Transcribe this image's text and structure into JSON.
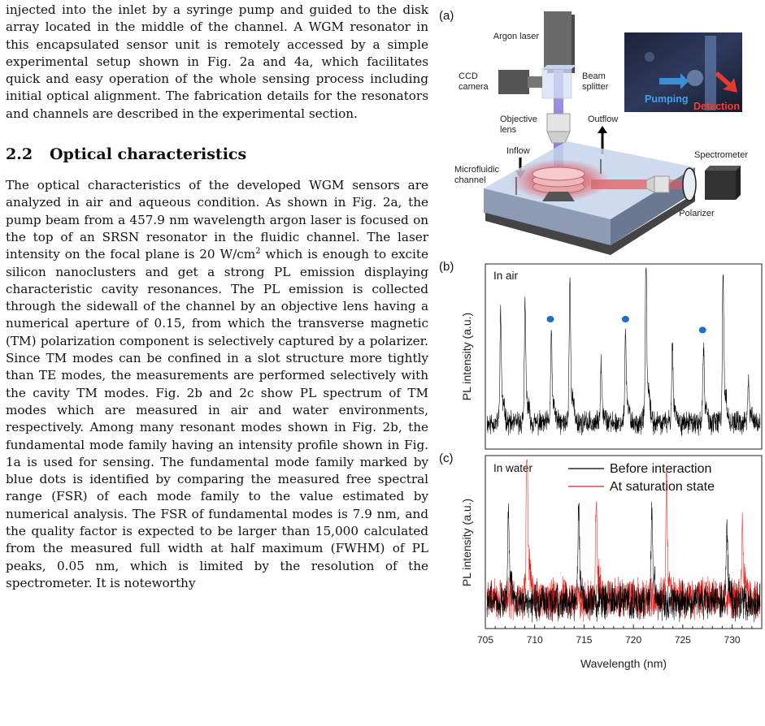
{
  "intro_text": "injected into the inlet by a syringe pump and guided to the disk array located in the middle of the channel. A WGM resonator in this encapsulated sensor unit is remotely accessed by a simple experimental setup shown in Fig. 2a and 4a, which facilitates quick and easy operation of the whole sensing process including initial optical alignment. The fabrication details for the resonators and channels are described in the experimental section.",
  "section": {
    "number": "2.2",
    "title": "Optical characteristics"
  },
  "body": {
    "part1": "The optical characteristics of the developed WGM sensors are analyzed in air and aqueous condition. As shown in Fig. 2a, the pump beam from a 457.9 nm wavelength argon laser is focused on the top of an SRSN resonator in the fluidic channel. The laser intensity on the focal plane is 20 W/cm",
    "sup": "2",
    "part2": " which is enough to excite silicon nanoclusters and get a strong PL emission displaying characteristic cavity resonances. The PL emission is collected through the sidewall of the channel by an objective lens having a numerical aperture of 0.15, from which the transverse magnetic (TM) polarization component is selectively captured by a polarizer. Since TM modes can be confined in a slot structure more tightly than TE modes, the measurements are performed selectively with the cavity TM modes. Fig. 2b and 2c show PL spectrum of TM modes which are measured in air and water environments, respectively. Among many resonant modes shown in Fig. 2b, the fundamental mode family having an intensity profile shown in Fig. 1a is used for sensing. The fundamental mode family marked by blue dots is identified by comparing the measured free spectral range (FSR) of each mode family to the value estimated by numerical analysis. The FSR of fundamental modes is 7.9 nm, and the quality factor is expected to be larger than 15,000 calculated from the measured full width at half maximum (FWHM) of PL peaks, 0.05 nm, which is limited by the resolution of the spectrometer. It is noteworthy"
  },
  "figure": {
    "panel_a": {
      "label": "(a)",
      "argon_laser": "Argon laser",
      "ccd_1": "CCD",
      "ccd_2": "camera",
      "beam_1": "Beam",
      "beam_2": "splitter",
      "objective_1": "Objective",
      "objective_2": "lens",
      "outflow": "Outflow",
      "inflow": "Inflow",
      "micro_1": "Microfluidic",
      "micro_2": "channel",
      "spectrometer": "Spectrometer",
      "polarizer": "Polarizer",
      "photo_pumping": "Pumping",
      "photo_detection": "Detection"
    },
    "colors": {
      "before": "#000000",
      "saturation": "#e8201c",
      "fundamental_dots": "#1f6fbf",
      "laser_beam": "#8a7fd8",
      "pl_glow": "#e84a4a"
    },
    "chart_data": [
      {
        "panel": "(b)",
        "type": "line",
        "inset_label": "In air",
        "ylabel": "PL intensity (a.u.)",
        "xlim": [
          705,
          733
        ],
        "grid": false,
        "series": [
          {
            "peaks": [
              [
                706.4,
                0.52
              ],
              [
                708.9,
                0.55
              ],
              [
                711.6,
                0.42
              ],
              [
                713.5,
                0.68
              ],
              [
                716.7,
                0.3
              ],
              [
                719.2,
                0.42
              ],
              [
                721.3,
                0.8
              ],
              [
                724.0,
                0.38
              ],
              [
                727.2,
                0.36
              ],
              [
                729.2,
                0.73
              ],
              [
                731.8,
                0.2
              ]
            ]
          }
        ],
        "markers": {
          "name": "fundamental mode family",
          "x": [
            711.5,
            719.2,
            727.1
          ]
        }
      },
      {
        "panel": "(c)",
        "type": "line",
        "inset_label": "In water",
        "xlabel": "Wavelength (nm)",
        "ylabel": "PL intensity (a.u.)",
        "xlim": [
          705,
          733
        ],
        "xticks": [
          705,
          710,
          715,
          720,
          725,
          730
        ],
        "grid": false,
        "legend_position": "top-right",
        "series": [
          {
            "name": "Before interaction",
            "peaks": [
              [
                707.2,
                0.5
              ],
              [
                714.4,
                0.52
              ],
              [
                721.9,
                0.55
              ],
              [
                729.6,
                0.38
              ]
            ]
          },
          {
            "name": "At saturation state",
            "peaks": [
              [
                709.1,
                0.93
              ],
              [
                716.2,
                0.51
              ],
              [
                723.4,
                0.68
              ],
              [
                731.2,
                0.4
              ]
            ]
          }
        ]
      }
    ]
  }
}
